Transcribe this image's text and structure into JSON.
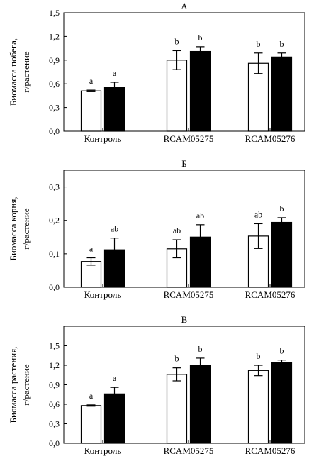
{
  "chart_data": [
    {
      "type": "bar",
      "title": "А",
      "ylabel_lines": [
        "Биомасса побега,",
        "г/растение"
      ],
      "categories": [
        "Контроль",
        "RCAM05275",
        "RCAM05276"
      ],
      "ylim": [
        0,
        1.5
      ],
      "yticks": [
        "0,0",
        "0,3",
        "0,6",
        "0,9",
        "1,2",
        "1,5"
      ],
      "series": [
        {
          "fill": "#ffffff",
          "values": [
            0.51,
            0.9,
            0.86
          ],
          "errors": [
            0.01,
            0.12,
            0.13
          ],
          "labels": [
            "a",
            "b",
            "b"
          ]
        },
        {
          "fill": "#000000",
          "values": [
            0.56,
            1.01,
            0.94
          ],
          "errors": [
            0.06,
            0.06,
            0.05
          ],
          "labels": [
            "a",
            "b",
            "b"
          ]
        }
      ]
    },
    {
      "type": "bar",
      "title": "Б",
      "ylabel_lines": [
        "Биомасса корня,",
        "г/растение"
      ],
      "categories": [
        "Контроль",
        "RCAM05275",
        "RCAM05276"
      ],
      "ylim": [
        0,
        0.35
      ],
      "yticks": [
        "0,0",
        "0,1",
        "0,2",
        "0,3"
      ],
      "series": [
        {
          "fill": "#ffffff",
          "values": [
            0.077,
            0.115,
            0.153
          ],
          "errors": [
            0.011,
            0.027,
            0.037
          ],
          "labels": [
            "a",
            "ab",
            "ab"
          ]
        },
        {
          "fill": "#000000",
          "values": [
            0.112,
            0.15,
            0.194
          ],
          "errors": [
            0.035,
            0.037,
            0.014
          ],
          "labels": [
            "ab",
            "ab",
            "b"
          ]
        }
      ]
    },
    {
      "type": "bar",
      "title": "В",
      "ylabel_lines": [
        "Биомасса растения,",
        "г/растение"
      ],
      "categories": [
        "Контроль",
        "RCAM05275",
        "RCAM05276"
      ],
      "ylim": [
        0,
        1.8
      ],
      "yticks": [
        "0,0",
        "0,3",
        "0,6",
        "0,9",
        "1,2",
        "1,5"
      ],
      "series": [
        {
          "fill": "#ffffff",
          "values": [
            0.58,
            1.06,
            1.12
          ],
          "errors": [
            0.01,
            0.1,
            0.08
          ],
          "labels": [
            "a",
            "b",
            "b"
          ]
        },
        {
          "fill": "#000000",
          "values": [
            0.76,
            1.2,
            1.24
          ],
          "errors": [
            0.1,
            0.11,
            0.04
          ],
          "labels": [
            "a",
            "b",
            "b"
          ]
        }
      ]
    }
  ]
}
